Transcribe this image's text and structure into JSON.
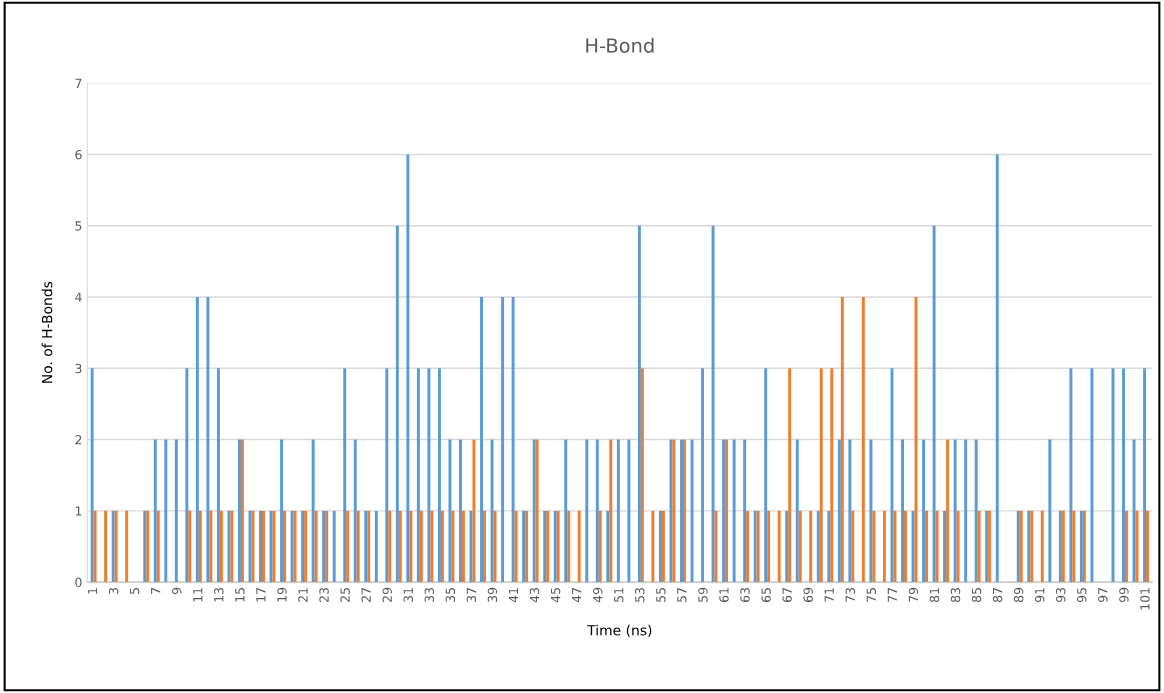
{
  "chart_data": {
    "type": "bar",
    "title": "H-Bond",
    "xlabel": "Time (ns)",
    "ylabel": "No. of H-Bonds",
    "categories": [
      "1",
      null,
      "3",
      null,
      "5",
      null,
      "7",
      null,
      "9",
      null,
      "11",
      null,
      "13",
      null,
      "15",
      null,
      "17",
      null,
      "19",
      null,
      "21",
      null,
      "23",
      null,
      "25",
      null,
      "27",
      null,
      "29",
      null,
      "31",
      null,
      "33",
      null,
      "35",
      null,
      "37",
      null,
      "39",
      null,
      "41",
      null,
      "43",
      null,
      "45",
      null,
      "47",
      null,
      "49",
      null,
      "51",
      null,
      "53",
      null,
      "55",
      null,
      "57",
      null,
      "59",
      null,
      "61",
      null,
      "63",
      null,
      "65",
      null,
      "67",
      null,
      "69",
      null,
      "71",
      null,
      "73",
      null,
      "75",
      null,
      "77",
      null,
      "79",
      null,
      "81",
      null,
      "83",
      null,
      "85",
      null,
      "87",
      null,
      "89",
      null,
      "91",
      null,
      "93",
      null,
      "95",
      null,
      "97",
      null,
      "99",
      null,
      "101"
    ],
    "series": [
      {
        "color": "#5b9bd5",
        "values": [
          3,
          0,
          1,
          0,
          0,
          1,
          2,
          2,
          2,
          3,
          4,
          4,
          3,
          1,
          2,
          1,
          1,
          1,
          2,
          1,
          1,
          2,
          1,
          1,
          3,
          2,
          1,
          1,
          3,
          5,
          6,
          3,
          3,
          3,
          2,
          2,
          1,
          4,
          2,
          4,
          4,
          1,
          2,
          1,
          1,
          2,
          0,
          2,
          2,
          1,
          2,
          2,
          5,
          0,
          1,
          2,
          2,
          2,
          3,
          5,
          2,
          2,
          2,
          1,
          3,
          0,
          1,
          2,
          0,
          1,
          1,
          2,
          2,
          0,
          2,
          0,
          3,
          2,
          1,
          2,
          5,
          1,
          2,
          2,
          2,
          1,
          6,
          0,
          1,
          1,
          0,
          2,
          1,
          3,
          1,
          3,
          0,
          3,
          3,
          2,
          3
        ]
      },
      {
        "color": "#ed7d31",
        "values": [
          1,
          1,
          1,
          1,
          0,
          1,
          1,
          0,
          0,
          1,
          1,
          1,
          1,
          1,
          2,
          1,
          1,
          1,
          1,
          1,
          1,
          1,
          1,
          0,
          1,
          1,
          1,
          0,
          1,
          1,
          1,
          1,
          1,
          1,
          1,
          1,
          2,
          1,
          1,
          0,
          1,
          1,
          2,
          1,
          1,
          1,
          1,
          0,
          1,
          2,
          0,
          0,
          3,
          1,
          1,
          2,
          2,
          0,
          0,
          1,
          2,
          0,
          1,
          1,
          1,
          1,
          3,
          1,
          1,
          3,
          3,
          4,
          1,
          4,
          1,
          1,
          1,
          1,
          4,
          1,
          1,
          2,
          1,
          0,
          1,
          1,
          0,
          0,
          1,
          1,
          1,
          0,
          1,
          1,
          1,
          0,
          0,
          0,
          1,
          1,
          1
        ]
      }
    ],
    "ylim": [
      0,
      7
    ],
    "yticks": [
      0,
      1,
      2,
      3,
      4,
      5,
      6,
      7
    ],
    "grid": "y",
    "legend": false
  }
}
